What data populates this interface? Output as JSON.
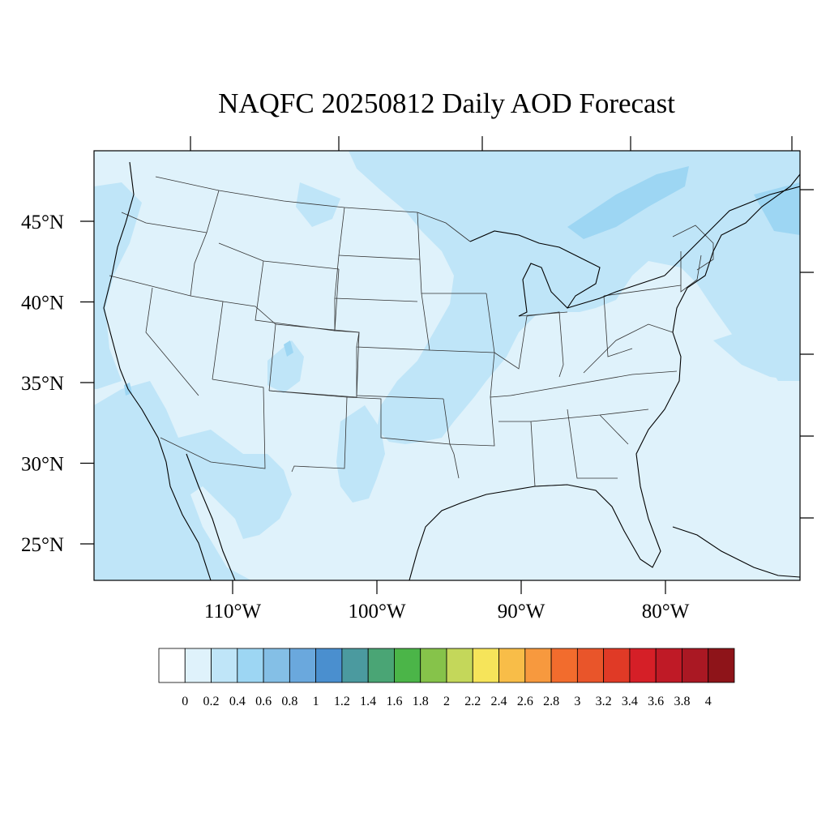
{
  "title": "NAQFC 20250812 Daily AOD Forecast",
  "map": {
    "background_color": "#dff2fb",
    "lat_labels": [
      {
        "text": "45°N",
        "lat": 45
      },
      {
        "text": "40°N",
        "lat": 40
      },
      {
        "text": "35°N",
        "lat": 35
      },
      {
        "text": "30°N",
        "lat": 30
      },
      {
        "text": "25°N",
        "lat": 25
      }
    ],
    "lon_labels": [
      {
        "text": "110°W",
        "lon": -110
      },
      {
        "text": "100°W",
        "lon": -100
      },
      {
        "text": "90°W",
        "lon": -90
      },
      {
        "text": "80°W",
        "lon": -80
      }
    ]
  },
  "colorbar": {
    "colors": [
      "#ffffff",
      "#dff2fb",
      "#bfe5f8",
      "#9dd6f3",
      "#84bfe6",
      "#6aa8dd",
      "#4a8fcf",
      "#4b9a9f",
      "#4aa575",
      "#4bb548",
      "#86c34a",
      "#c4d75a",
      "#f6e45a",
      "#f8bd48",
      "#f7993e",
      "#f26c2d",
      "#e9552a",
      "#e03a26",
      "#d51f27",
      "#bf1a26",
      "#aa1823",
      "#8e1419"
    ],
    "labels": [
      "0",
      "0.2",
      "0.4",
      "0.6",
      "0.8",
      "1",
      "1.2",
      "1.4",
      "1.6",
      "1.8",
      "2",
      "2.2",
      "2.4",
      "2.6",
      "2.8",
      "3",
      "3.2",
      "3.4",
      "3.6",
      "3.8",
      "4"
    ]
  }
}
